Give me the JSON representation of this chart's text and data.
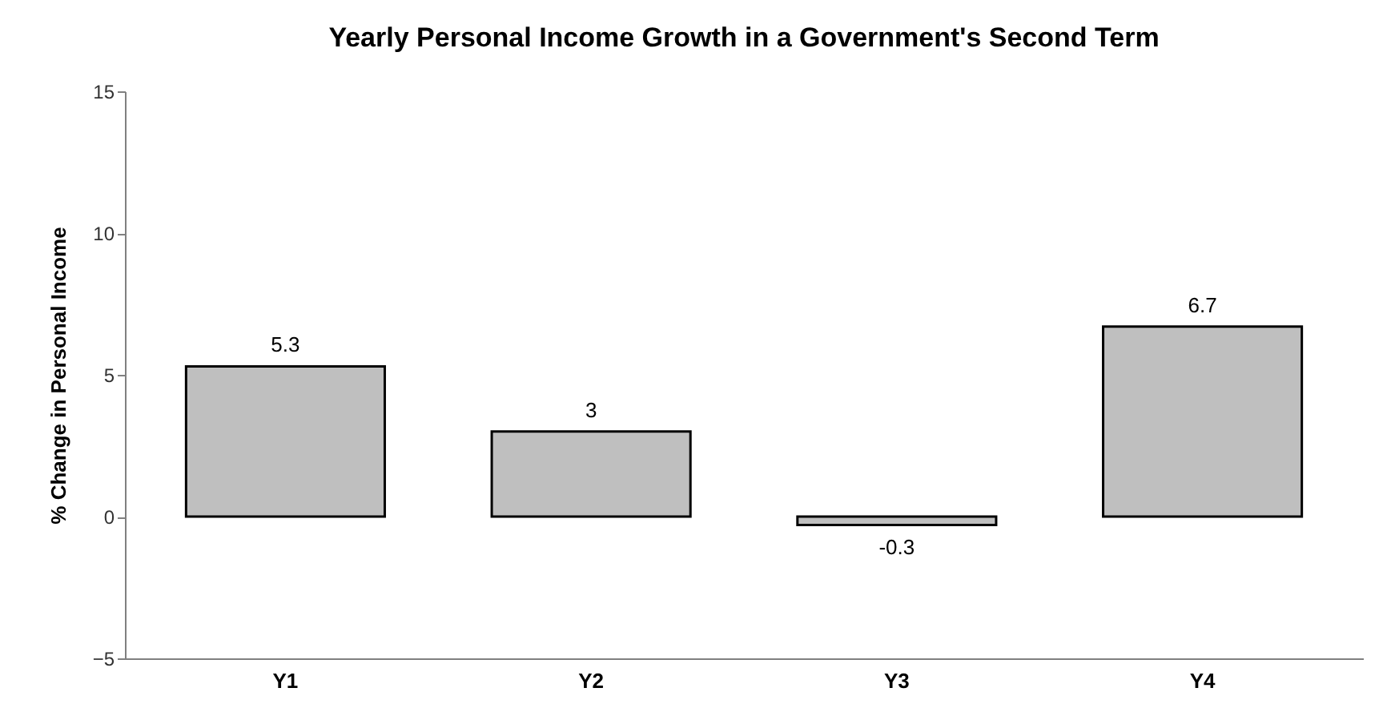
{
  "chart_data": {
    "type": "bar",
    "title": "Yearly Personal Income Growth in a Government's Second Term",
    "ylabel": "% Change in Personal Income",
    "categories": [
      "Y1",
      "Y2",
      "Y3",
      "Y4"
    ],
    "values": [
      5.3,
      3,
      -0.3,
      6.7
    ],
    "color": "#bfbfbf",
    "ylim": [
      -5,
      15
    ],
    "yticks": [
      -5,
      0,
      5,
      10,
      15
    ],
    "grid": false,
    "data_labels": true
  }
}
